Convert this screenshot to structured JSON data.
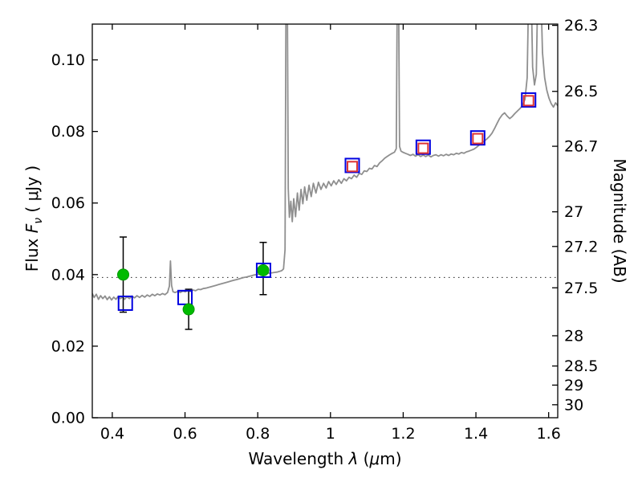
{
  "chart_data": {
    "type": "line",
    "title": "",
    "xlabel": "Wavelength λ (μm)",
    "xlabel_parts": [
      "Wavelength ",
      "λ",
      " (",
      "μ",
      "m)"
    ],
    "ylabel_left": "Flux Fν ( μJy )",
    "ylabel_left_parts": [
      "Flux ",
      "F",
      "ν",
      " ( μJy )"
    ],
    "ylabel_right": "Magnitude (AB)",
    "xlim": [
      0.345,
      1.625
    ],
    "ylim": [
      0,
      0.11
    ],
    "grid": false,
    "legend_position": "none",
    "x_ticks": [
      0.4,
      0.6,
      0.8,
      1.0,
      1.2,
      1.4,
      1.6
    ],
    "x_tick_labels": [
      "0.4",
      "0.6",
      "0.8",
      "1",
      "1.2",
      "1.4",
      "1.6"
    ],
    "y_ticks_left": [
      0.0,
      0.02,
      0.04,
      0.06,
      0.08,
      0.1
    ],
    "y_tick_labels_left": [
      "0.00",
      "0.02",
      "0.04",
      "0.06",
      "0.08",
      "0.10"
    ],
    "right_axis": {
      "unit": "AB magnitude",
      "magnitude_zero_point": 23.9,
      "ticks": [
        26.3,
        26.5,
        26.7,
        27.0,
        27.2,
        27.5,
        28.0,
        28.5,
        29.0,
        30.0
      ],
      "tick_labels": [
        "26.3",
        "26.5",
        "26.7",
        "27",
        "27.2",
        "27.5",
        "28",
        "28.5",
        "29",
        "30"
      ]
    },
    "dotted_line_flux": 0.0392,
    "colors": {
      "spectrum": "#8f8f8f",
      "blue_square": "#0000e0",
      "green_circle": "#00bb00",
      "green_circle_edge": "#009900",
      "red_square": "#dd3333",
      "error_bar": "#000000",
      "frame": "#000000"
    },
    "series": [
      {
        "name": "model spectrum",
        "type": "line",
        "color": "#8f8f8f",
        "points": [
          [
            0.345,
            0.0347
          ],
          [
            0.35,
            0.0336
          ],
          [
            0.356,
            0.0345
          ],
          [
            0.362,
            0.0331
          ],
          [
            0.368,
            0.0341
          ],
          [
            0.374,
            0.0333
          ],
          [
            0.38,
            0.034
          ],
          [
            0.386,
            0.033
          ],
          [
            0.392,
            0.0338
          ],
          [
            0.398,
            0.0329
          ],
          [
            0.404,
            0.0337
          ],
          [
            0.41,
            0.0331
          ],
          [
            0.416,
            0.0339
          ],
          [
            0.422,
            0.0333
          ],
          [
            0.428,
            0.0337
          ],
          [
            0.434,
            0.0331
          ],
          [
            0.44,
            0.0338
          ],
          [
            0.447,
            0.0333
          ],
          [
            0.454,
            0.034
          ],
          [
            0.461,
            0.0335
          ],
          [
            0.468,
            0.0341
          ],
          [
            0.475,
            0.0336
          ],
          [
            0.482,
            0.0342
          ],
          [
            0.489,
            0.0337
          ],
          [
            0.496,
            0.0343
          ],
          [
            0.503,
            0.0339
          ],
          [
            0.51,
            0.0345
          ],
          [
            0.517,
            0.0341
          ],
          [
            0.524,
            0.0346
          ],
          [
            0.531,
            0.0343
          ],
          [
            0.538,
            0.0347
          ],
          [
            0.545,
            0.0344
          ],
          [
            0.552,
            0.035
          ],
          [
            0.557,
            0.0368
          ],
          [
            0.56,
            0.0438
          ],
          [
            0.563,
            0.037
          ],
          [
            0.567,
            0.0352
          ],
          [
            0.573,
            0.035
          ],
          [
            0.58,
            0.0353
          ],
          [
            0.587,
            0.035
          ],
          [
            0.594,
            0.0354
          ],
          [
            0.601,
            0.0352
          ],
          [
            0.608,
            0.0356
          ],
          [
            0.615,
            0.0353
          ],
          [
            0.622,
            0.0357
          ],
          [
            0.629,
            0.0355
          ],
          [
            0.636,
            0.0359
          ],
          [
            0.643,
            0.0358
          ],
          [
            0.65,
            0.0361
          ],
          [
            0.657,
            0.0362
          ],
          [
            0.664,
            0.0364
          ],
          [
            0.671,
            0.0366
          ],
          [
            0.678,
            0.0368
          ],
          [
            0.685,
            0.037
          ],
          [
            0.692,
            0.0372
          ],
          [
            0.699,
            0.0374
          ],
          [
            0.706,
            0.0376
          ],
          [
            0.713,
            0.0378
          ],
          [
            0.72,
            0.038
          ],
          [
            0.727,
            0.0382
          ],
          [
            0.734,
            0.0384
          ],
          [
            0.741,
            0.0386
          ],
          [
            0.748,
            0.0388
          ],
          [
            0.755,
            0.039
          ],
          [
            0.762,
            0.0392
          ],
          [
            0.769,
            0.0393
          ],
          [
            0.776,
            0.0395
          ],
          [
            0.783,
            0.0397
          ],
          [
            0.79,
            0.0399
          ],
          [
            0.797,
            0.04
          ],
          [
            0.804,
            0.0401
          ],
          [
            0.811,
            0.0402
          ],
          [
            0.818,
            0.0402
          ],
          [
            0.825,
            0.0403
          ],
          [
            0.832,
            0.0404
          ],
          [
            0.839,
            0.0405
          ],
          [
            0.846,
            0.0406
          ],
          [
            0.853,
            0.0407
          ],
          [
            0.86,
            0.0409
          ],
          [
            0.866,
            0.0411
          ],
          [
            0.871,
            0.0416
          ],
          [
            0.875,
            0.047
          ],
          [
            0.878,
            0.125
          ],
          [
            0.881,
            0.125
          ],
          [
            0.884,
            0.064
          ],
          [
            0.887,
            0.056
          ],
          [
            0.891,
            0.0605
          ],
          [
            0.895,
            0.0548
          ],
          [
            0.899,
            0.0612
          ],
          [
            0.904,
            0.0562
          ],
          [
            0.909,
            0.0628
          ],
          [
            0.914,
            0.058
          ],
          [
            0.919,
            0.0638
          ],
          [
            0.924,
            0.0598
          ],
          [
            0.929,
            0.0645
          ],
          [
            0.935,
            0.0608
          ],
          [
            0.941,
            0.065
          ],
          [
            0.947,
            0.0618
          ],
          [
            0.953,
            0.0655
          ],
          [
            0.96,
            0.0628
          ],
          [
            0.967,
            0.0658
          ],
          [
            0.974,
            0.0638
          ],
          [
            0.981,
            0.0655
          ],
          [
            0.988,
            0.0642
          ],
          [
            0.995,
            0.066
          ],
          [
            1.002,
            0.0648
          ],
          [
            1.009,
            0.0662
          ],
          [
            1.016,
            0.0652
          ],
          [
            1.023,
            0.0665
          ],
          [
            1.03,
            0.0655
          ],
          [
            1.037,
            0.0668
          ],
          [
            1.044,
            0.0662
          ],
          [
            1.051,
            0.0672
          ],
          [
            1.058,
            0.0668
          ],
          [
            1.065,
            0.0678
          ],
          [
            1.072,
            0.0672
          ],
          [
            1.079,
            0.0683
          ],
          [
            1.086,
            0.068
          ],
          [
            1.093,
            0.069
          ],
          [
            1.1,
            0.0688
          ],
          [
            1.107,
            0.0697
          ],
          [
            1.114,
            0.0695
          ],
          [
            1.121,
            0.0705
          ],
          [
            1.128,
            0.0702
          ],
          [
            1.135,
            0.0712
          ],
          [
            1.142,
            0.0718
          ],
          [
            1.149,
            0.0725
          ],
          [
            1.156,
            0.073
          ],
          [
            1.163,
            0.0735
          ],
          [
            1.17,
            0.0739
          ],
          [
            1.176,
            0.0742
          ],
          [
            1.181,
            0.0752
          ],
          [
            1.184,
            0.125
          ],
          [
            1.187,
            0.125
          ],
          [
            1.19,
            0.0758
          ],
          [
            1.194,
            0.0745
          ],
          [
            1.199,
            0.0742
          ],
          [
            1.206,
            0.0739
          ],
          [
            1.213,
            0.0736
          ],
          [
            1.22,
            0.0733
          ],
          [
            1.227,
            0.0736
          ],
          [
            1.234,
            0.0731
          ],
          [
            1.241,
            0.0735
          ],
          [
            1.248,
            0.073
          ],
          [
            1.255,
            0.0734
          ],
          [
            1.262,
            0.073
          ],
          [
            1.269,
            0.0734
          ],
          [
            1.276,
            0.0729
          ],
          [
            1.283,
            0.0733
          ],
          [
            1.29,
            0.0735
          ],
          [
            1.297,
            0.0731
          ],
          [
            1.304,
            0.0735
          ],
          [
            1.311,
            0.0732
          ],
          [
            1.318,
            0.0736
          ],
          [
            1.325,
            0.0733
          ],
          [
            1.332,
            0.0737
          ],
          [
            1.339,
            0.0735
          ],
          [
            1.346,
            0.0739
          ],
          [
            1.353,
            0.0737
          ],
          [
            1.36,
            0.0741
          ],
          [
            1.367,
            0.0739
          ],
          [
            1.374,
            0.0743
          ],
          [
            1.381,
            0.0745
          ],
          [
            1.388,
            0.0748
          ],
          [
            1.395,
            0.0751
          ],
          [
            1.402,
            0.0756
          ],
          [
            1.409,
            0.0762
          ],
          [
            1.416,
            0.0768
          ],
          [
            1.423,
            0.0773
          ],
          [
            1.43,
            0.0779
          ],
          [
            1.437,
            0.0786
          ],
          [
            1.444,
            0.0795
          ],
          [
            1.451,
            0.0808
          ],
          [
            1.458,
            0.0822
          ],
          [
            1.465,
            0.0836
          ],
          [
            1.472,
            0.0846
          ],
          [
            1.479,
            0.0852
          ],
          [
            1.486,
            0.0843
          ],
          [
            1.493,
            0.0836
          ],
          [
            1.5,
            0.0842
          ],
          [
            1.507,
            0.085
          ],
          [
            1.514,
            0.0857
          ],
          [
            1.521,
            0.0864
          ],
          [
            1.528,
            0.0872
          ],
          [
            1.535,
            0.089
          ],
          [
            1.541,
            0.095
          ],
          [
            1.546,
            0.125
          ],
          [
            1.551,
            0.125
          ],
          [
            1.556,
            0.098
          ],
          [
            1.561,
            0.093
          ],
          [
            1.566,
            0.096
          ],
          [
            1.571,
            0.125
          ],
          [
            1.577,
            0.125
          ],
          [
            1.583,
            0.102
          ],
          [
            1.589,
            0.095
          ],
          [
            1.595,
            0.0915
          ],
          [
            1.601,
            0.0893
          ],
          [
            1.607,
            0.0878
          ],
          [
            1.613,
            0.0868
          ],
          [
            1.619,
            0.088
          ],
          [
            1.625,
            0.0872
          ]
        ]
      },
      {
        "name": "observed photometry (green filled circles with error bars)",
        "type": "scatter",
        "marker": "filled-circle",
        "color": "#00bb00",
        "points": [
          {
            "x": 0.43,
            "flux": 0.04,
            "err_minus": 0.0105,
            "err_plus": 0.0105
          },
          {
            "x": 0.61,
            "flux": 0.0303,
            "err_minus": 0.0056,
            "err_plus": 0.0056
          },
          {
            "x": 0.815,
            "flux": 0.0412,
            "err_minus": 0.0068,
            "err_plus": 0.0078
          }
        ]
      },
      {
        "name": "model photometry (blue open squares)",
        "type": "scatter",
        "marker": "open-square",
        "color": "#0000e0",
        "points": [
          [
            0.436,
            0.032
          ],
          [
            0.6,
            0.0336
          ],
          [
            0.816,
            0.0412
          ],
          [
            1.06,
            0.0705
          ],
          [
            1.255,
            0.0756
          ],
          [
            1.405,
            0.0782
          ],
          [
            1.545,
            0.0888
          ]
        ]
      },
      {
        "name": "photometry (red open squares)",
        "type": "scatter",
        "marker": "open-square",
        "color": "#dd3333",
        "points": [
          [
            1.06,
            0.0702
          ],
          [
            1.255,
            0.0753
          ],
          [
            1.405,
            0.078
          ],
          [
            1.545,
            0.0886
          ]
        ]
      }
    ]
  }
}
